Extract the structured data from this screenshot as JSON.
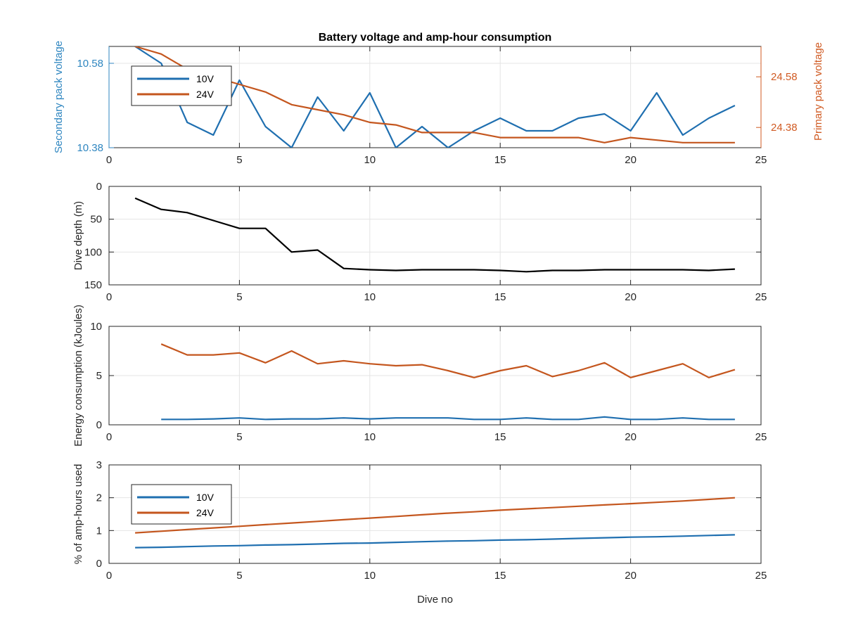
{
  "colors": {
    "blue": "#1f6fb0",
    "orange": "#c4561e",
    "black": "#000000",
    "grid": "#e4e4e4",
    "axis": "#262626",
    "label_blue": "#2f86c0",
    "label_orange": "#d05a22"
  },
  "xlabel": "Dive no",
  "chart_data": [
    {
      "type": "line",
      "title": "Battery voltage and amp-hour consumption",
      "xlim": [
        0,
        25
      ],
      "xticks": [
        0,
        5,
        10,
        15,
        20,
        25
      ],
      "yleft": {
        "label": "Secondary pack voltage",
        "ylim": [
          10.38,
          10.62
        ],
        "ticks": [
          10.38,
          10.58
        ]
      },
      "yright": {
        "label": "Primary pack voltage",
        "ylim": [
          24.3,
          24.7
        ],
        "ticks": [
          24.38,
          24.58
        ]
      },
      "legend": {
        "position": "top-left",
        "entries": [
          "10V",
          "24V"
        ]
      },
      "grid": true,
      "series": [
        {
          "name": "10V",
          "axis": "left",
          "color": "blue",
          "x": [
            1,
            2,
            3,
            4,
            5,
            6,
            7,
            8,
            9,
            10,
            11,
            12,
            13,
            14,
            15,
            16,
            17,
            18,
            19,
            20,
            21,
            22,
            23,
            24
          ],
          "values": [
            10.62,
            10.58,
            10.44,
            10.41,
            10.54,
            10.43,
            10.38,
            10.5,
            10.42,
            10.51,
            10.38,
            10.43,
            10.38,
            10.42,
            10.45,
            10.42,
            10.42,
            10.45,
            10.46,
            10.42,
            10.51,
            10.41,
            10.45,
            10.48
          ]
        },
        {
          "name": "24V",
          "axis": "right",
          "color": "orange",
          "x": [
            1,
            2,
            3,
            4,
            5,
            6,
            7,
            8,
            9,
            10,
            11,
            12,
            13,
            14,
            15,
            16,
            17,
            18,
            19,
            20,
            21,
            22,
            23,
            24
          ],
          "values": [
            24.7,
            24.67,
            24.61,
            24.58,
            24.55,
            24.52,
            24.47,
            24.45,
            24.43,
            24.4,
            24.39,
            24.36,
            24.36,
            24.36,
            24.34,
            24.34,
            24.34,
            24.34,
            24.32,
            24.34,
            24.33,
            24.32,
            24.32,
            24.32
          ]
        }
      ]
    },
    {
      "type": "line",
      "title": "",
      "xlim": [
        0,
        25
      ],
      "xticks": [
        0,
        5,
        10,
        15,
        20,
        25
      ],
      "ylabel": "Dive depth (m)",
      "ylim": [
        0,
        150
      ],
      "yreversed": true,
      "yticks": [
        0,
        50,
        100,
        150
      ],
      "grid": true,
      "series": [
        {
          "color": "black",
          "x": [
            1,
            2,
            3,
            4,
            5,
            6,
            7,
            8,
            9,
            10,
            11,
            12,
            13,
            14,
            15,
            16,
            17,
            18,
            19,
            20,
            21,
            22,
            23,
            24
          ],
          "values": [
            18,
            35,
            40,
            52,
            64,
            64,
            100,
            97,
            125,
            127,
            128,
            127,
            127,
            127,
            128,
            130,
            128,
            128,
            127,
            127,
            127,
            127,
            128,
            126
          ]
        }
      ]
    },
    {
      "type": "line",
      "title": "",
      "xlim": [
        0,
        25
      ],
      "xticks": [
        0,
        5,
        10,
        15,
        20,
        25
      ],
      "ylabel": "Energy consumption (kJoules)",
      "ylim": [
        0,
        10
      ],
      "yticks": [
        0,
        5,
        10
      ],
      "grid": true,
      "series": [
        {
          "color": "orange",
          "x": [
            2,
            3,
            4,
            5,
            6,
            7,
            8,
            9,
            10,
            11,
            12,
            13,
            14,
            15,
            16,
            17,
            18,
            19,
            20,
            21,
            22,
            23,
            24
          ],
          "values": [
            8.2,
            7.1,
            7.1,
            7.3,
            6.3,
            7.5,
            6.2,
            6.5,
            6.2,
            6.0,
            6.1,
            5.5,
            4.8,
            5.5,
            6.0,
            4.9,
            5.5,
            6.3,
            4.8,
            5.5,
            6.2,
            4.8,
            5.6
          ]
        },
        {
          "color": "blue",
          "x": [
            2,
            3,
            4,
            5,
            6,
            7,
            8,
            9,
            10,
            11,
            12,
            13,
            14,
            15,
            16,
            17,
            18,
            19,
            20,
            21,
            22,
            23,
            24
          ],
          "values": [
            0.55,
            0.55,
            0.6,
            0.7,
            0.55,
            0.6,
            0.6,
            0.7,
            0.6,
            0.7,
            0.7,
            0.7,
            0.55,
            0.55,
            0.7,
            0.55,
            0.55,
            0.8,
            0.55,
            0.55,
            0.7,
            0.55,
            0.55
          ]
        }
      ]
    },
    {
      "type": "line",
      "title": "",
      "xlim": [
        0,
        25
      ],
      "xticks": [
        0,
        5,
        10,
        15,
        20,
        25
      ],
      "ylabel": "% of amp-hours used",
      "ylim": [
        0,
        3
      ],
      "yticks": [
        0,
        1,
        2,
        3
      ],
      "legend": {
        "position": "top-left",
        "entries": [
          "10V",
          "24V"
        ]
      },
      "grid": true,
      "series": [
        {
          "name": "10V",
          "color": "blue",
          "x": [
            1,
            2,
            3,
            4,
            5,
            6,
            7,
            8,
            9,
            10,
            11,
            12,
            13,
            14,
            15,
            16,
            17,
            18,
            19,
            20,
            21,
            22,
            23,
            24
          ],
          "values": [
            0.48,
            0.49,
            0.51,
            0.53,
            0.54,
            0.56,
            0.57,
            0.59,
            0.61,
            0.62,
            0.64,
            0.66,
            0.68,
            0.69,
            0.71,
            0.72,
            0.74,
            0.76,
            0.78,
            0.8,
            0.81,
            0.83,
            0.85,
            0.87
          ]
        },
        {
          "name": "24V",
          "color": "orange",
          "x": [
            1,
            2,
            3,
            4,
            5,
            6,
            7,
            8,
            9,
            10,
            11,
            12,
            13,
            14,
            15,
            16,
            17,
            18,
            19,
            20,
            21,
            22,
            23,
            24
          ],
          "values": [
            0.93,
            0.98,
            1.03,
            1.08,
            1.13,
            1.18,
            1.23,
            1.28,
            1.33,
            1.38,
            1.43,
            1.48,
            1.53,
            1.57,
            1.62,
            1.66,
            1.7,
            1.74,
            1.78,
            1.82,
            1.86,
            1.9,
            1.95,
            2.0
          ]
        }
      ]
    }
  ]
}
